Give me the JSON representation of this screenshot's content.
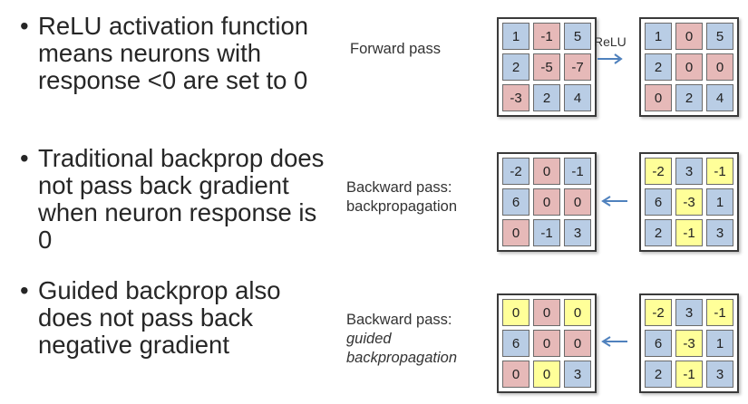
{
  "colors": {
    "blue": "#b9cde5",
    "red": "#e6b9b8",
    "yellow": "#ffff99",
    "arrow": "#4f81bd"
  },
  "bullets": [
    {
      "marker": "•",
      "text": "ReLU activation function means neurons with response <0 are set to 0"
    },
    {
      "marker": "•",
      "text": "Traditional backprop does not pass back gradient when neuron response is 0"
    },
    {
      "marker": "•",
      "text": "Guided backprop also does not pass back negative gradient"
    }
  ],
  "rows": [
    {
      "label": {
        "line1": "Forward pass",
        "line2": "",
        "line3": ""
      },
      "arrow_label": "ReLU",
      "left_grid": {
        "values": [
          "1",
          "-1",
          "5",
          "2",
          "-5",
          "-7",
          "-3",
          "2",
          "4"
        ],
        "colors": [
          "blue",
          "red",
          "blue",
          "blue",
          "red",
          "red",
          "red",
          "blue",
          "blue"
        ]
      },
      "right_grid": {
        "values": [
          "1",
          "0",
          "5",
          "2",
          "0",
          "0",
          "0",
          "2",
          "4"
        ],
        "colors": [
          "blue",
          "red",
          "blue",
          "blue",
          "red",
          "red",
          "red",
          "blue",
          "blue"
        ]
      }
    },
    {
      "label": {
        "line1": "Backward pass:",
        "line2": "backpropagation",
        "line3": ""
      },
      "arrow_label": "",
      "left_grid": {
        "values": [
          "-2",
          "0",
          "-1",
          "6",
          "0",
          "0",
          "0",
          "-1",
          "3"
        ],
        "colors": [
          "blue",
          "red",
          "blue",
          "blue",
          "red",
          "red",
          "red",
          "blue",
          "blue"
        ]
      },
      "right_grid": {
        "values": [
          "-2",
          "3",
          "-1",
          "6",
          "-3",
          "1",
          "2",
          "-1",
          "3"
        ],
        "colors": [
          "yellow",
          "blue",
          "yellow",
          "blue",
          "yellow",
          "blue",
          "blue",
          "yellow",
          "blue"
        ]
      }
    },
    {
      "label": {
        "line1": "Backward pass:",
        "line2": "guided",
        "line3": "backpropagation"
      },
      "arrow_label": "",
      "left_grid": {
        "values": [
          "0",
          "0",
          "0",
          "6",
          "0",
          "0",
          "0",
          "0",
          "3"
        ],
        "colors": [
          "yellow",
          "red",
          "yellow",
          "blue",
          "red",
          "red",
          "red",
          "yellow",
          "blue"
        ]
      },
      "right_grid": {
        "values": [
          "-2",
          "3",
          "-1",
          "6",
          "-3",
          "1",
          "2",
          "-1",
          "3"
        ],
        "colors": [
          "yellow",
          "blue",
          "yellow",
          "blue",
          "yellow",
          "blue",
          "blue",
          "yellow",
          "blue"
        ]
      }
    }
  ]
}
